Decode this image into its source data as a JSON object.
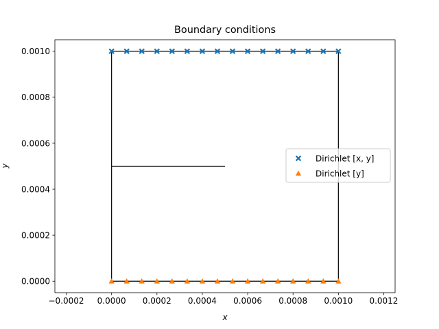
{
  "chart_data": {
    "type": "scatter",
    "title": "Boundary conditions",
    "xlabel": "x",
    "ylabel": "y",
    "xlim": [
      -0.00025,
      0.00125
    ],
    "ylim": [
      -5e-05,
      0.00105
    ],
    "xticks": [
      -0.0002,
      0.0,
      0.0002,
      0.0004,
      0.0006,
      0.0008,
      0.001,
      0.0012
    ],
    "xtick_labels": [
      "−0.0002",
      "0.0000",
      "0.0002",
      "0.0004",
      "0.0006",
      "0.0008",
      "0.0010",
      "0.0012"
    ],
    "yticks": [
      0.0,
      0.0002,
      0.0004,
      0.0006,
      0.0008,
      0.001
    ],
    "ytick_labels": [
      "0.0000",
      "0.0002",
      "0.0004",
      "0.0006",
      "0.0008",
      "0.0010"
    ],
    "grid": false,
    "legend_position": "center-right",
    "outline": [
      [
        0.0,
        0.0
      ],
      [
        0.001,
        0.0
      ],
      [
        0.001,
        0.001
      ],
      [
        0.0,
        0.001
      ],
      [
        0.0,
        0.0
      ]
    ],
    "crack": [
      [
        0.0,
        0.0005
      ],
      [
        0.0005,
        0.0005
      ]
    ],
    "series": [
      {
        "name": "Dirichlet  [x, y]",
        "marker": "x-filled",
        "color": "#1f77b4",
        "x": [
          0.0,
          6.67e-05,
          0.0001333,
          0.0002,
          0.0002667,
          0.0003333,
          0.0004,
          0.0004667,
          0.0005333,
          0.0006,
          0.0006667,
          0.0007333,
          0.0008,
          0.0008667,
          0.0009333,
          0.001
        ],
        "y": [
          0.001,
          0.001,
          0.001,
          0.001,
          0.001,
          0.001,
          0.001,
          0.001,
          0.001,
          0.001,
          0.001,
          0.001,
          0.001,
          0.001,
          0.001,
          0.001
        ]
      },
      {
        "name": "Dirichlet  [y]",
        "marker": "triangle-up",
        "color": "#ff7f0e",
        "x": [
          0.0,
          6.67e-05,
          0.0001333,
          0.0002,
          0.0002667,
          0.0003333,
          0.0004,
          0.0004667,
          0.0005333,
          0.0006,
          0.0006667,
          0.0007333,
          0.0008,
          0.0008667,
          0.0009333,
          0.001
        ],
        "y": [
          0.0,
          0.0,
          0.0,
          0.0,
          0.0,
          0.0,
          0.0,
          0.0,
          0.0,
          0.0,
          0.0,
          0.0,
          0.0,
          0.0,
          0.0,
          0.0
        ]
      }
    ]
  }
}
